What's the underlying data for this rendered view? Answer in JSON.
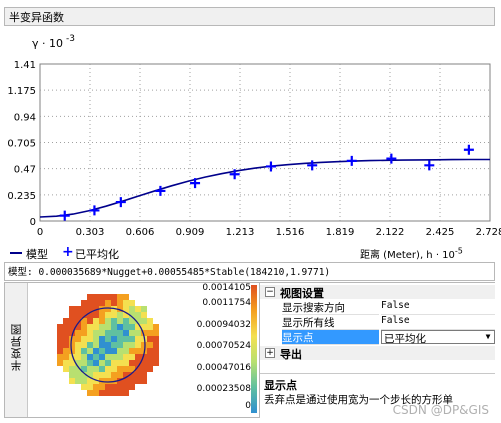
{
  "window": {
    "title": "半变异函数"
  },
  "chart_data": {
    "type": "scatter",
    "y_axis_label": "γ · 10",
    "y_axis_exponent": "-3",
    "x_axis_label": "距离 (Meter), h · 10",
    "x_axis_exponent": "-5",
    "xlim": [
      0,
      2.728
    ],
    "ylim": [
      0,
      1.41
    ],
    "x_ticks": [
      "0",
      "0.303",
      "0.606",
      "0.909",
      "1.213",
      "1.516",
      "1.819",
      "2.122",
      "2.425",
      "2.728"
    ],
    "y_ticks": [
      "0",
      "0.235",
      "0.47",
      "0.705",
      "0.94",
      "1.175",
      "1.41"
    ],
    "grid": true,
    "series": [
      {
        "name": "模型",
        "kind": "line",
        "color": "#00008b",
        "x": [
          0,
          0.1,
          0.2,
          0.3,
          0.4,
          0.5,
          0.6,
          0.7,
          0.8,
          0.9,
          1.0,
          1.1,
          1.2,
          1.3,
          1.4,
          1.5,
          1.6,
          1.7,
          1.8,
          1.9,
          2.0,
          2.1,
          2.2,
          2.3,
          2.4,
          2.5,
          2.6,
          2.728
        ],
        "y": [
          0.036,
          0.043,
          0.062,
          0.093,
          0.133,
          0.178,
          0.225,
          0.272,
          0.317,
          0.358,
          0.394,
          0.425,
          0.452,
          0.474,
          0.492,
          0.506,
          0.517,
          0.526,
          0.533,
          0.538,
          0.542,
          0.545,
          0.547,
          0.549,
          0.55,
          0.551,
          0.552,
          0.552
        ]
      },
      {
        "name": "已平均化",
        "kind": "points",
        "color": "#0000ff",
        "x": [
          0.15,
          0.33,
          0.49,
          0.73,
          0.94,
          1.18,
          1.4,
          1.65,
          1.89,
          2.13,
          2.36,
          2.6
        ],
        "y": [
          0.048,
          0.095,
          0.17,
          0.27,
          0.34,
          0.42,
          0.49,
          0.5,
          0.54,
          0.56,
          0.5,
          0.64
        ]
      }
    ]
  },
  "legend": {
    "model_label": "模型",
    "averaged_label": "已平均化"
  },
  "x_axis": {
    "label": "距离 (Meter), h · 10",
    "exponent": "-5"
  },
  "model_bar": {
    "text": "模型: 0.000035689*Nugget+0.00055485*Stable(184210,1.9771)"
  },
  "side_label": "半变异图",
  "scale": {
    "values": [
      "0.0014105",
      "0.0011754",
      "0.00094032",
      "0.00070524",
      "0.00047016",
      "0.00023508",
      "0"
    ],
    "colors": [
      "#e05020",
      "#f4a020",
      "#f4e050",
      "#b8e070",
      "#60c0a0",
      "#3090d0"
    ]
  },
  "props": {
    "view_group": "视图设置",
    "search_dir_label": "显示搜索方向",
    "search_dir_value": "False",
    "all_lines_label": "显示所有线",
    "all_lines_value": "False",
    "points_label": "显示点",
    "points_value": "已平均化",
    "export_group": "导出",
    "expand_minus": "−",
    "expand_plus": "+",
    "desc_title": "显示点",
    "desc_text": "丢弃点是通过使用宽为一个步长的方形单"
  },
  "watermark": "CSDN @DP&GIS"
}
